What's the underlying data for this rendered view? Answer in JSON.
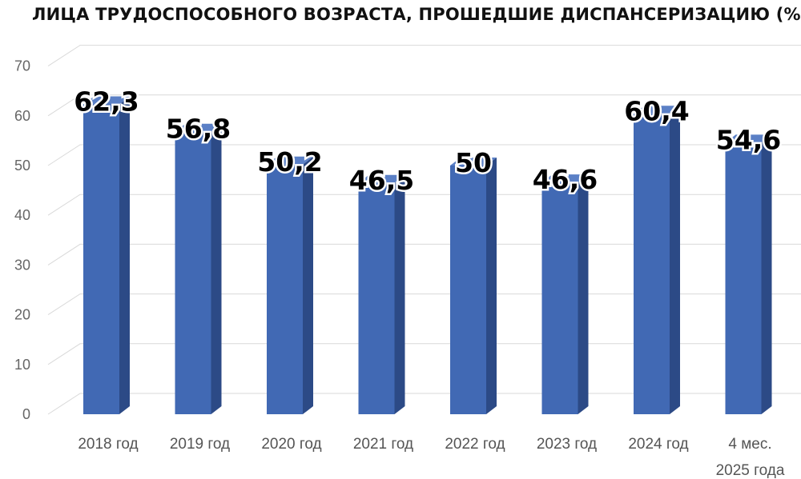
{
  "chart_data": {
    "type": "bar",
    "title": "ЛИЦА ТРУДОСПОСОБНОГО ВОЗРАСТА, ПРОШЕДШИЕ ДИСПАНСЕРИЗАЦИЮ (%)",
    "categories": [
      [
        "2018 год"
      ],
      [
        "2019 год"
      ],
      [
        "2020 год"
      ],
      [
        "2021 год"
      ],
      [
        "2022 год"
      ],
      [
        "2023 год"
      ],
      [
        "2024 год"
      ],
      [
        "4 мес.",
        "2025 года"
      ]
    ],
    "series": [
      {
        "values": [
          62.3,
          56.8,
          50.2,
          46.5,
          50,
          46.6,
          60.4,
          54.6
        ],
        "labels": [
          "62,3",
          "56,8",
          "50,2",
          "46,5",
          "50",
          "46,6",
          "60,4",
          "54,6"
        ]
      }
    ],
    "ylim": [
      0,
      70
    ],
    "yticks": [
      0,
      10,
      20,
      30,
      40,
      50,
      60,
      70
    ],
    "grid": true,
    "style": "3d-column",
    "colors": {
      "bar_front": "#4169b4",
      "bar_side": "#2c4a86",
      "bar_top": "#5b80c6",
      "grid": "#d9d9d9"
    }
  }
}
